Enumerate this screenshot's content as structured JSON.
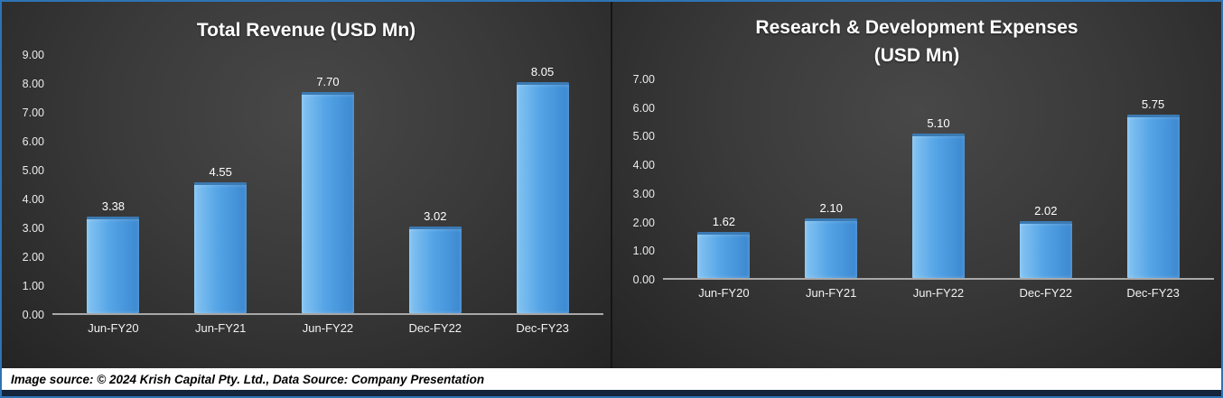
{
  "footer": {
    "text": "Image source: © 2024 Krish Capital Pty. Ltd., Data Source: Company Presentation"
  },
  "colors": {
    "frame_border": "#2e74b5",
    "bar_fill": "#54a4e6",
    "background_dark": "#3a3a3a",
    "axis_line": "#a8a8a8",
    "text_light": "#ffffff"
  },
  "chart_data": [
    {
      "type": "bar",
      "title_lines": [
        "Total Revenue (USD Mn)"
      ],
      "categories": [
        "Jun-FY20",
        "Jun-FY21",
        "Jun-FY22",
        "Dec-FY22",
        "Dec-FY23"
      ],
      "values": [
        3.38,
        4.55,
        7.7,
        3.02,
        8.05
      ],
      "value_labels": [
        "3.38",
        "4.55",
        "7.70",
        "3.02",
        "8.05"
      ],
      "ylim": [
        0,
        9
      ],
      "yticks": [
        "9.00",
        "8.00",
        "7.00",
        "6.00",
        "5.00",
        "4.00",
        "3.00",
        "2.00",
        "1.00",
        "0.00"
      ],
      "xlabel": "",
      "ylabel": "",
      "grid": false,
      "legend": "none"
    },
    {
      "type": "bar",
      "title_lines": [
        "Research & Development Expenses",
        "(USD Mn)"
      ],
      "categories": [
        "Jun-FY20",
        "Jun-FY21",
        "Jun-FY22",
        "Dec-FY22",
        "Dec-FY23"
      ],
      "values": [
        1.62,
        2.1,
        5.1,
        2.02,
        5.75
      ],
      "value_labels": [
        "1.62",
        "2.10",
        "5.10",
        "2.02",
        "5.75"
      ],
      "ylim": [
        0,
        7
      ],
      "yticks": [
        "7.00",
        "6.00",
        "5.00",
        "4.00",
        "3.00",
        "2.00",
        "1.00",
        "0.00"
      ],
      "xlabel": "",
      "ylabel": "",
      "grid": false,
      "legend": "none"
    }
  ]
}
